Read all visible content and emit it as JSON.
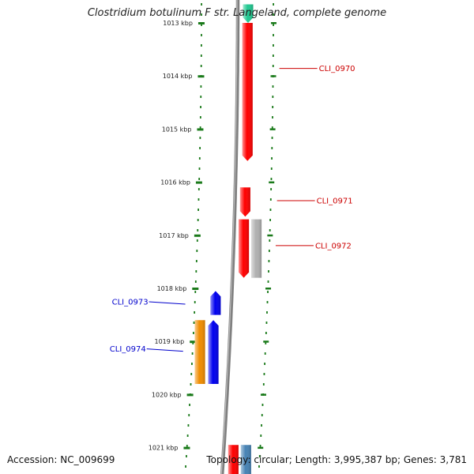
{
  "title": "Clostridium botulinum F str. Langeland, complete genome",
  "accession": "Accession: NC_009699",
  "topology": "Topology: circular; Length: 3,995,387 bp; Genes: 3,781",
  "ticks": [
    {
      "label": "1013 kbp",
      "kbp": 1013
    },
    {
      "label": "1014 kbp",
      "kbp": 1014
    },
    {
      "label": "1015 kbp",
      "kbp": 1015
    },
    {
      "label": "1016 kbp",
      "kbp": 1016
    },
    {
      "label": "1017 kbp",
      "kbp": 1017
    },
    {
      "label": "1018 kbp",
      "kbp": 1018
    },
    {
      "label": "1019 kbp",
      "kbp": 1019
    },
    {
      "label": "1020 kbp",
      "kbp": 1020
    },
    {
      "label": "1021 kbp",
      "kbp": 1021
    }
  ],
  "genes": [
    {
      "label": "",
      "strand": "+",
      "track": 1,
      "color": "#20c890",
      "start": 1012.65,
      "end": 1013.0,
      "dir": "down"
    },
    {
      "label": "CLI_0970",
      "strand": "+",
      "track": 1,
      "color": "#ff0000",
      "start": 1013.0,
      "end": 1015.6,
      "dir": "down"
    },
    {
      "label": "CLI_0971",
      "strand": "+",
      "track": 1,
      "color": "#ff0000",
      "start": 1016.1,
      "end": 1016.65,
      "dir": "down"
    },
    {
      "label": "CLI_0972",
      "strand": "+",
      "track": 1,
      "color": "#ff0000",
      "start": 1016.7,
      "end": 1017.8,
      "dir": "down"
    },
    {
      "label": "",
      "strand": "+",
      "track": 2,
      "color": "#b0b0b0",
      "start": 1016.7,
      "end": 1017.8,
      "dir": "none"
    },
    {
      "label": "CLI_0973",
      "strand": "-",
      "track": 1,
      "color": "#0000ee",
      "start": 1018.05,
      "end": 1018.5,
      "dir": "up"
    },
    {
      "label": "CLI_0974",
      "strand": "-",
      "track": 1,
      "color": "#0000ee",
      "start": 1018.6,
      "end": 1019.8,
      "dir": "up"
    },
    {
      "label": "",
      "strand": "-",
      "track": 2,
      "color": "#f08c00",
      "start": 1018.6,
      "end": 1019.8,
      "dir": "none"
    },
    {
      "label": "",
      "strand": "+",
      "track": 1,
      "color": "#ff0000",
      "start": 1020.95,
      "end": 1021.5,
      "dir": "none"
    },
    {
      "label": "",
      "strand": "+",
      "track": 2,
      "color": "#4682b4",
      "start": 1020.95,
      "end": 1021.5,
      "dir": "none"
    }
  ],
  "colors": {
    "backbone": "#808080",
    "tick": "#1a7a1a",
    "forward_label": "#cc0000",
    "reverse_label": "#0000cc"
  }
}
